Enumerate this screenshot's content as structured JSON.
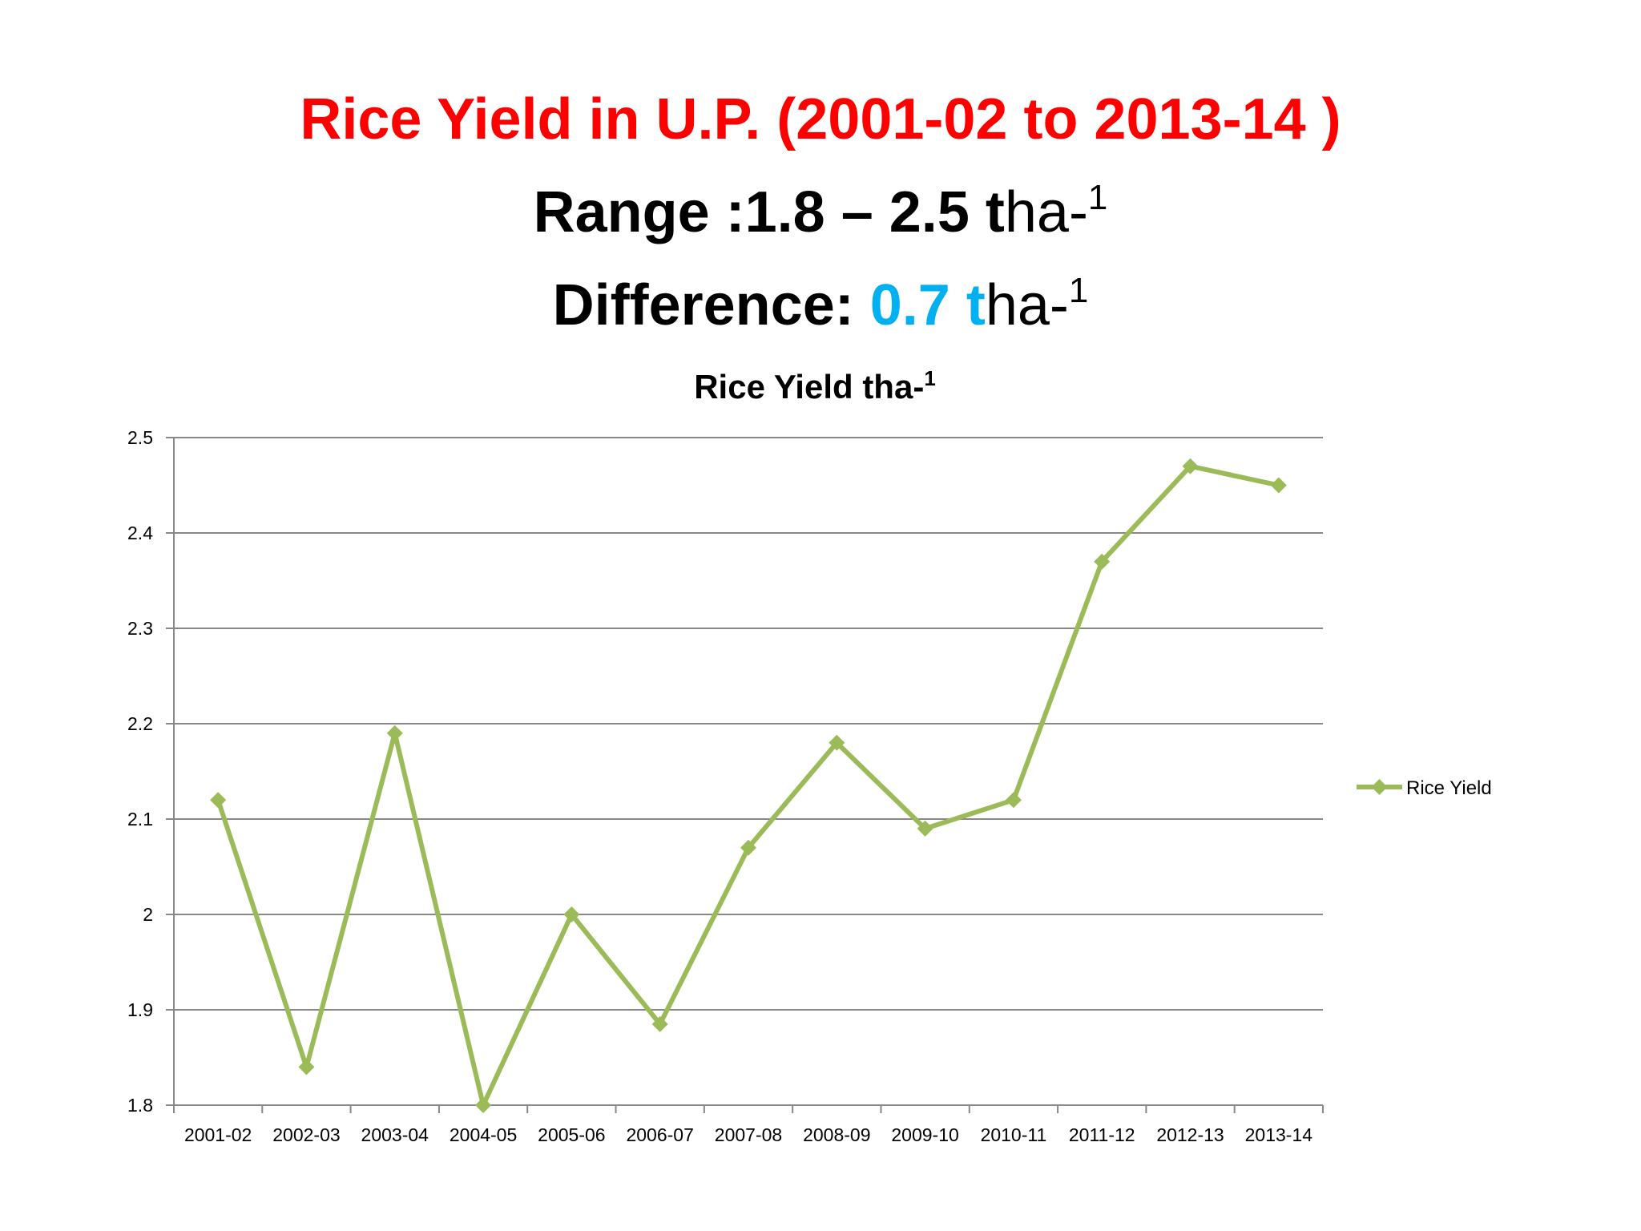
{
  "slide": {
    "title": "Rice Yield in U.P. (2001-02 to 2013-14 )",
    "range_label": "Range :",
    "range_value": "1.8 – 2.5",
    "difference_label": "Difference:",
    "difference_value": "0.7",
    "unit_t": "t",
    "unit_rest": "ha-",
    "unit_sup": "1",
    "accent_color": "#00b0f0",
    "title_color": "#ff0000"
  },
  "chart_data": {
    "type": "line",
    "title": "Rice Yield tha-",
    "title_sup": "1",
    "categories": [
      "2001-02",
      "2002-03",
      "2003-04",
      "2004-05",
      "2005-06",
      "2006-07",
      "2007-08",
      "2008-09",
      "2009-10",
      "2010-11",
      "2011-12",
      "2012-13",
      "2013-14"
    ],
    "series": [
      {
        "name": "Rice Yield",
        "color": "#9bbb59",
        "marker": "diamond",
        "values": [
          2.12,
          1.84,
          2.19,
          1.8,
          2.0,
          1.885,
          2.07,
          2.18,
          2.09,
          2.12,
          2.37,
          2.47,
          2.45
        ]
      }
    ],
    "ylim": [
      1.8,
      2.5
    ],
    "yticks": [
      "1.8",
      "1.9",
      "2",
      "2.1",
      "2.2",
      "2.3",
      "2.4",
      "2.5"
    ],
    "grid": true,
    "legend_position": "right"
  }
}
